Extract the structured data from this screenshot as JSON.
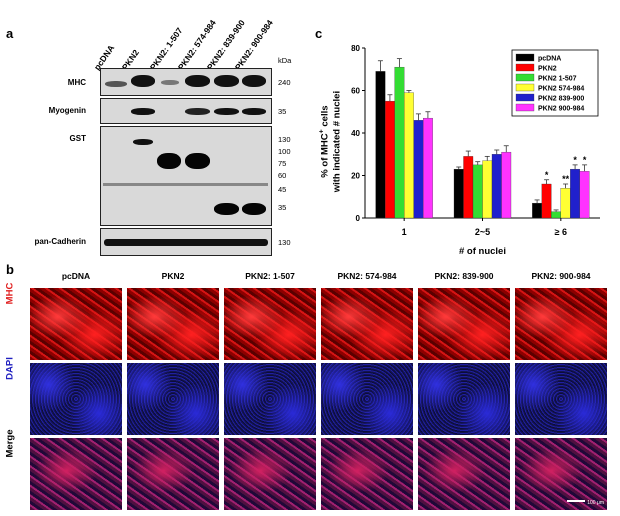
{
  "panel_a": {
    "letter": "a",
    "lanes": [
      "pcDNA",
      "PKN2",
      "PKN2: 1-507",
      "PKN2: 574-984",
      "PKN2: 839-900",
      "PKN2: 900-984"
    ],
    "kda_title": "kDa",
    "rows": [
      {
        "label": "MHC",
        "markers": [
          "240"
        ]
      },
      {
        "label": "Myogenin",
        "markers": [
          "35"
        ]
      },
      {
        "label": "GST",
        "markers": [
          "130",
          "100",
          "75",
          "60",
          "45",
          "35"
        ]
      },
      {
        "label": "pan-Cadherin",
        "markers": [
          "130"
        ]
      }
    ]
  },
  "panel_b": {
    "letter": "b",
    "columns": [
      "pcDNA",
      "PKN2",
      "PKN2: 1-507",
      "PKN2: 574-984",
      "PKN2: 839-900",
      "PKN2: 900-984"
    ],
    "rows": [
      {
        "label": "MHC",
        "color": "#e02020"
      },
      {
        "label": "DAPI",
        "color": "#2020c0"
      },
      {
        "label": "Merge",
        "color": "#000000"
      }
    ],
    "scale_bar": "100 μm"
  },
  "panel_c": {
    "letter": "c",
    "ylabel_line1": "% of MHC",
    "ylabel_sup": "+",
    "ylabel_line1_tail": " cells",
    "ylabel_line2": "with indicated # nuclei",
    "xlabel": "# of nuclei"
  },
  "chart_data": {
    "type": "bar",
    "categories": [
      "1",
      "2~5",
      "≥ 6"
    ],
    "series": [
      {
        "name": "pcDNA",
        "color": "#000000",
        "values": [
          69,
          23,
          7
        ],
        "errors": [
          5,
          1,
          1.5
        ]
      },
      {
        "name": "PKN2",
        "color": "#ff0000",
        "values": [
          55,
          29,
          16
        ],
        "errors": [
          3,
          2.5,
          2
        ]
      },
      {
        "name": "PKN2 1-507",
        "color": "#33dd33",
        "values": [
          71,
          25,
          3
        ],
        "errors": [
          4,
          1.5,
          0.8
        ]
      },
      {
        "name": "PKN2 574-984",
        "color": "#ffff33",
        "values": [
          59,
          27,
          14
        ],
        "errors": [
          1,
          2,
          2
        ]
      },
      {
        "name": "PKN2 839-900",
        "color": "#2020cc",
        "values": [
          46,
          30,
          23
        ],
        "errors": [
          3,
          2,
          2
        ]
      },
      {
        "name": "PKN2 900-984",
        "color": "#ff33ff",
        "values": [
          47,
          31,
          22
        ],
        "errors": [
          3,
          3,
          3
        ]
      }
    ],
    "annotations": [
      [
        "",
        "",
        ""
      ],
      [
        "",
        "",
        "*"
      ],
      [
        "",
        "",
        ""
      ],
      [
        "",
        "",
        "**"
      ],
      [
        "",
        "",
        "*"
      ],
      [
        "",
        "",
        "*"
      ]
    ],
    "ylim": [
      0,
      80
    ],
    "yticks": [
      "0",
      "20",
      "40",
      "60",
      "80"
    ],
    "legend": "top-right",
    "grid": false
  }
}
